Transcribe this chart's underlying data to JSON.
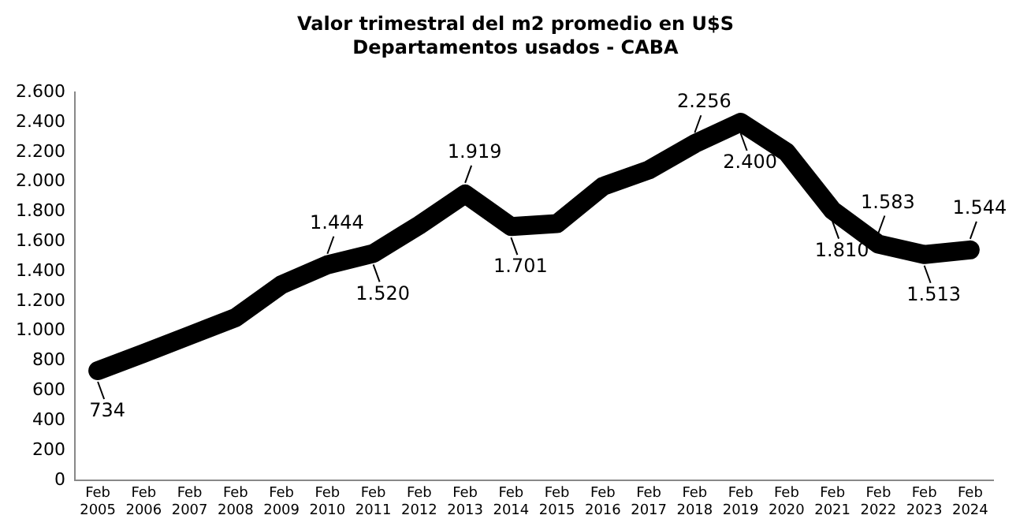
{
  "chart_data": {
    "type": "line",
    "title": "Valor trimestral del m2 promedio en U$S",
    "subtitle": "Departamentos usados - CABA",
    "categories": [
      "Feb 2005",
      "Feb 2006",
      "Feb 2007",
      "Feb 2008",
      "Feb 2009",
      "Feb 2010",
      "Feb 2011",
      "Feb 2012",
      "Feb 2013",
      "Feb 2014",
      "Feb 2015",
      "Feb 2016",
      "Feb 2017",
      "Feb 2018",
      "Feb 2019",
      "Feb 2020",
      "Feb 2021",
      "Feb 2022",
      "Feb 2023",
      "Feb 2024"
    ],
    "series": [
      {
        "color": "#000000",
        "values": [
          734,
          850,
          970,
          1090,
          1310,
          1444,
          1520,
          1710,
          1919,
          1701,
          1720,
          1970,
          2080,
          2256,
          2400,
          2200,
          1810,
          1583,
          1513,
          1544
        ],
        "value_labels": [
          "734",
          null,
          null,
          null,
          null,
          "1.444",
          "1.520",
          null,
          "1.919",
          "1.701",
          null,
          null,
          null,
          "2.256",
          "2.400",
          null,
          "1.810",
          "1.583",
          "1.513",
          "1.544"
        ]
      }
    ],
    "ylim": [
      0,
      2600
    ],
    "yticks": [
      0,
      200,
      400,
      600,
      800,
      {
        "value": 1000,
        "label": "1.000"
      },
      {
        "value": 1200,
        "label": "1.200"
      },
      {
        "value": 1400,
        "label": "1.400"
      },
      {
        "value": 1600,
        "label": "1.600"
      },
      {
        "value": 1800,
        "label": "1.800"
      },
      {
        "value": 2000,
        "label": "2.000"
      },
      {
        "value": 2200,
        "label": "2.200"
      },
      {
        "value": 2400,
        "label": "2.400"
      },
      {
        "value": 2600,
        "label": "2.600"
      }
    ],
    "grid": false,
    "legend": false,
    "marker": "none",
    "line_style": "solid"
  }
}
